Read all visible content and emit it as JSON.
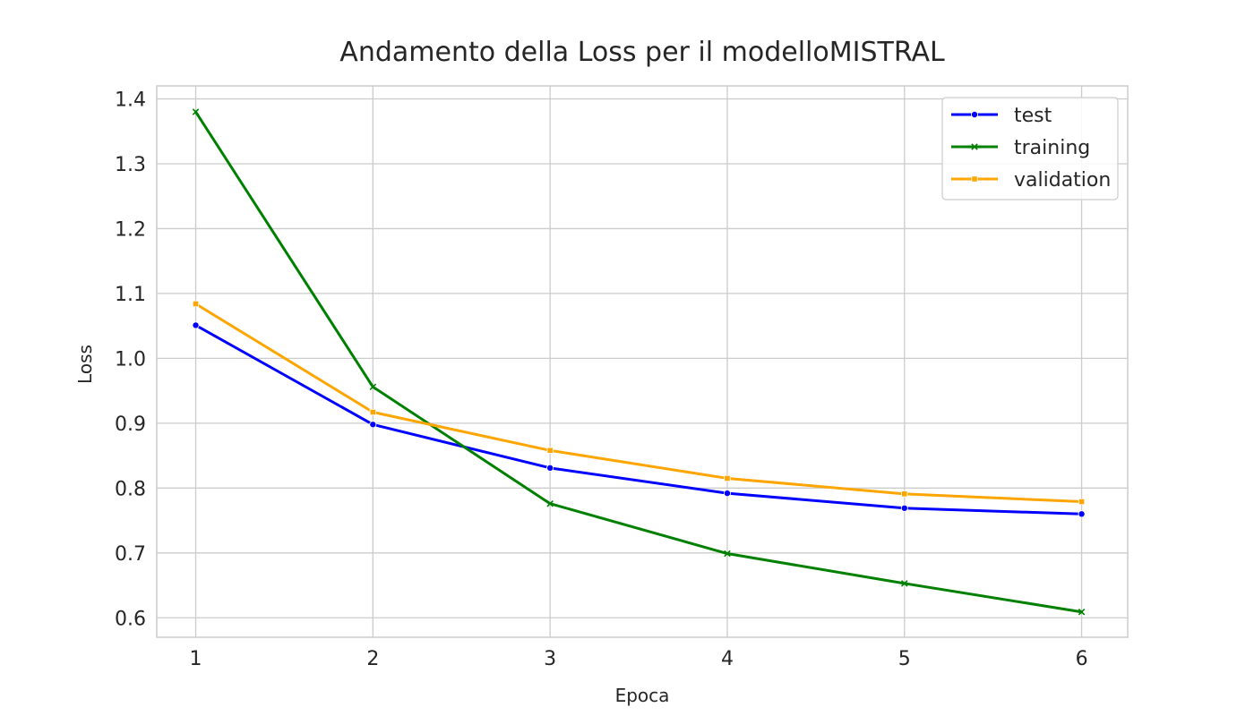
{
  "chart_data": {
    "type": "line",
    "title": "Andamento della Loss per il modelloMISTRAL",
    "xlabel": "Epoca",
    "ylabel": "Loss",
    "x": [
      1,
      2,
      3,
      4,
      5,
      6
    ],
    "xlim": [
      0.78,
      6.26
    ],
    "ylim": [
      0.57,
      1.42
    ],
    "yticks": [
      0.6,
      0.7,
      0.8,
      0.9,
      1.0,
      1.1,
      1.2,
      1.3,
      1.4
    ],
    "ytick_labels": [
      "0.6",
      "0.7",
      "0.8",
      "0.9",
      "1.0",
      "1.1",
      "1.2",
      "1.3",
      "1.4"
    ],
    "xtick_labels": [
      "1",
      "2",
      "3",
      "4",
      "5",
      "6"
    ],
    "grid": true,
    "legend_position": "top-right",
    "series": [
      {
        "name": "test",
        "color": "#0000ff",
        "marker": "circle",
        "values": [
          1.051,
          0.898,
          0.831,
          0.792,
          0.769,
          0.76
        ]
      },
      {
        "name": "training",
        "color": "#008000",
        "marker": "x",
        "values": [
          1.38,
          0.956,
          0.776,
          0.699,
          0.653,
          0.609
        ]
      },
      {
        "name": "validation",
        "color": "#ffa500",
        "marker": "square",
        "values": [
          1.084,
          0.917,
          0.858,
          0.815,
          0.791,
          0.779
        ]
      }
    ]
  }
}
